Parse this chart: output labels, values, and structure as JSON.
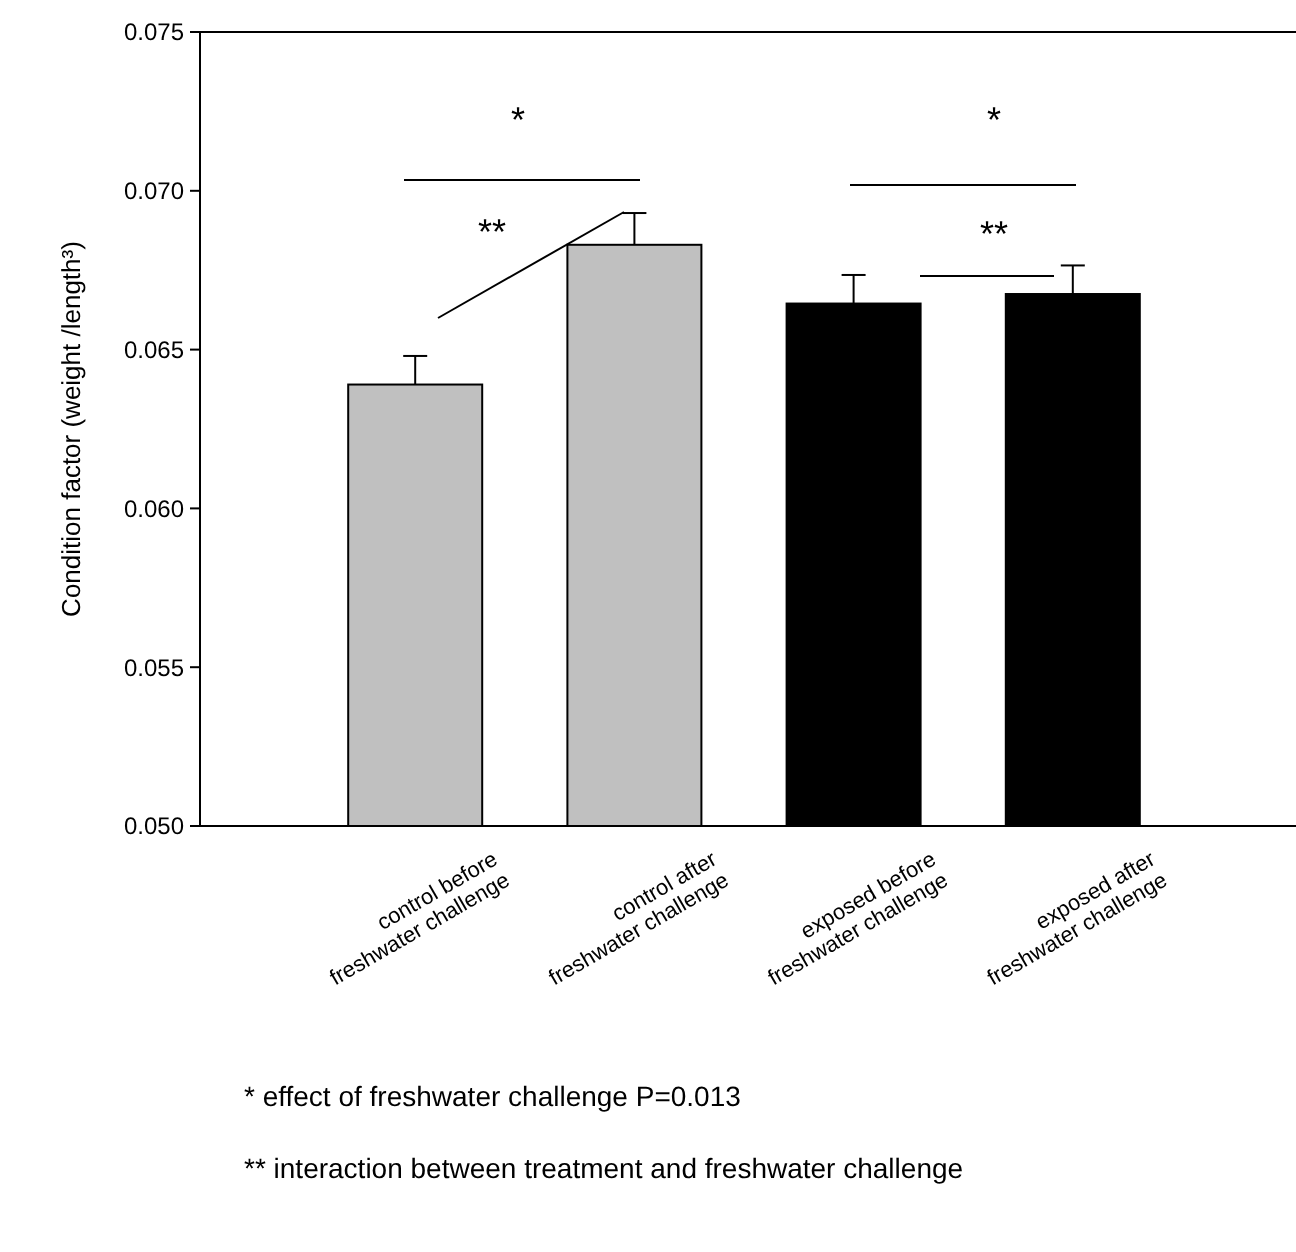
{
  "chart_data": {
    "type": "bar",
    "ylabel": "Condition factor (weight /length³)",
    "categories": [
      "control before\nfreshwater challenge",
      "control after\nfreshwater challenge",
      "exposed before\nfreshwater challenge",
      "exposed after\nfreshwater challenge"
    ],
    "values": [
      0.0639,
      0.0683,
      0.06645,
      0.06675
    ],
    "colors": [
      "#c0c0c0",
      "#c0c0c0",
      "#000000",
      "#000000"
    ],
    "errors": [
      0.0009,
      0.001,
      0.0009,
      0.0009
    ],
    "ylim": [
      0.05,
      0.075
    ],
    "yticks": [
      {
        "value": 0.05,
        "label": "0.050"
      },
      0.055,
      {
        "value": 0.06,
        "label": "0.060"
      },
      0.065,
      {
        "value": 0.07,
        "label": "0.070"
      },
      0.075
    ],
    "grid": false,
    "annotations": [
      "*",
      "**",
      "*",
      "**",
      "* effect of freshwater challenge P=0.013",
      "** interaction between treatment and freshwater challenge"
    ]
  }
}
